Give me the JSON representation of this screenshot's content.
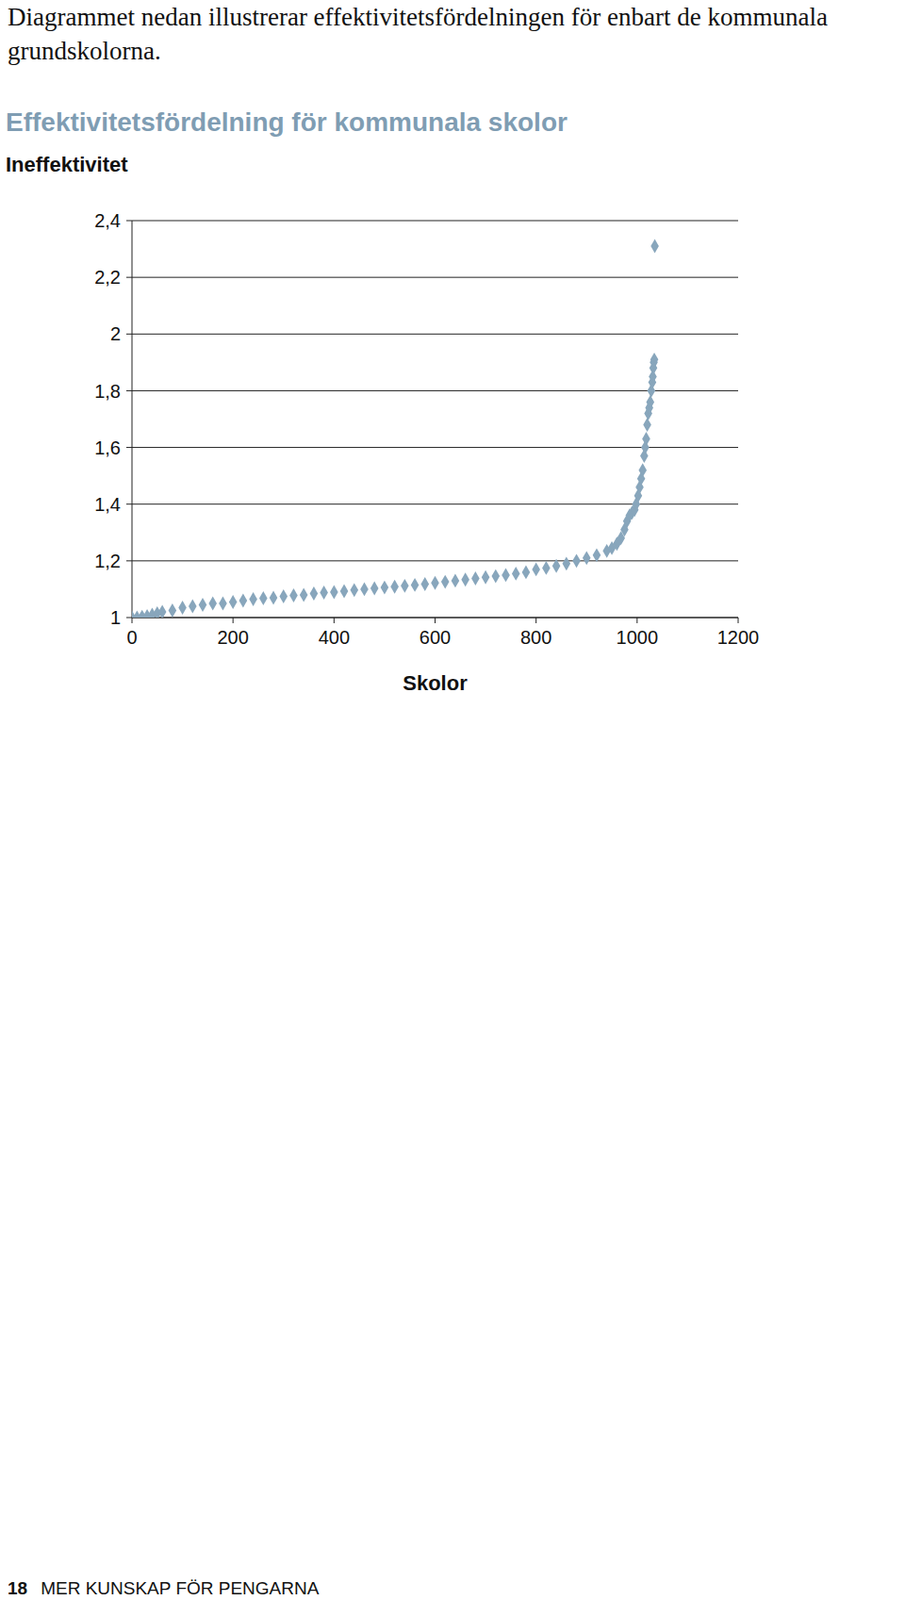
{
  "page": {
    "intro": "Diagrammet nedan illustrerar effektivitetsfördelningen för enbart de kommunala grundskolorna.",
    "footer": {
      "page_number": 18,
      "title": "MER KUNSKAP FÖR PENGARNA"
    }
  },
  "chart_data": {
    "type": "scatter",
    "title": "Effektivitetsfördelning för kommunala skolor",
    "y_label": "Ineffektivitet",
    "x_label": "Skolor",
    "x": [
      0,
      10,
      20,
      30,
      40,
      50,
      60,
      80,
      100,
      120,
      140,
      160,
      180,
      200,
      220,
      240,
      260,
      280,
      300,
      320,
      340,
      360,
      380,
      400,
      420,
      440,
      460,
      480,
      500,
      520,
      540,
      560,
      580,
      600,
      620,
      640,
      660,
      680,
      700,
      720,
      740,
      760,
      780,
      800,
      820,
      840,
      860,
      880,
      900,
      920,
      940,
      950,
      960,
      968,
      975,
      980,
      985,
      990,
      995,
      998,
      1002,
      1005,
      1008,
      1011,
      1014,
      1016,
      1018,
      1020,
      1022,
      1024,
      1026,
      1028,
      1030,
      1031,
      1032,
      1033,
      1034,
      1035
    ],
    "values": [
      1.0,
      1.0,
      1.003,
      1.005,
      1.01,
      1.015,
      1.02,
      1.025,
      1.035,
      1.04,
      1.045,
      1.05,
      1.05,
      1.055,
      1.06,
      1.065,
      1.068,
      1.07,
      1.075,
      1.078,
      1.08,
      1.085,
      1.088,
      1.09,
      1.093,
      1.097,
      1.1,
      1.103,
      1.106,
      1.109,
      1.112,
      1.115,
      1.118,
      1.122,
      1.126,
      1.13,
      1.134,
      1.138,
      1.142,
      1.146,
      1.15,
      1.155,
      1.16,
      1.17,
      1.175,
      1.182,
      1.19,
      1.2,
      1.21,
      1.22,
      1.235,
      1.245,
      1.26,
      1.28,
      1.31,
      1.34,
      1.36,
      1.37,
      1.38,
      1.4,
      1.43,
      1.46,
      1.49,
      1.52,
      1.57,
      1.6,
      1.63,
      1.68,
      1.72,
      1.74,
      1.76,
      1.8,
      1.83,
      1.85,
      1.88,
      1.9,
      1.91,
      2.31
    ],
    "color": "#88a6bc",
    "marker": "diamond",
    "xlim": [
      0,
      1200
    ],
    "xticks": [
      0,
      200,
      400,
      600,
      800,
      1000,
      1200
    ],
    "ylim": [
      1,
      2.4
    ],
    "yticks": [
      1,
      {
        "value": 1.2,
        "label": "1,2"
      },
      {
        "value": 1.4,
        "label": "1,4"
      },
      {
        "value": 1.6,
        "label": "1,6"
      },
      {
        "value": 1.8,
        "label": "1,8"
      },
      2,
      {
        "value": 2.2,
        "label": "2,2"
      },
      {
        "value": 2.4,
        "label": "2,4"
      }
    ],
    "grid": true
  }
}
